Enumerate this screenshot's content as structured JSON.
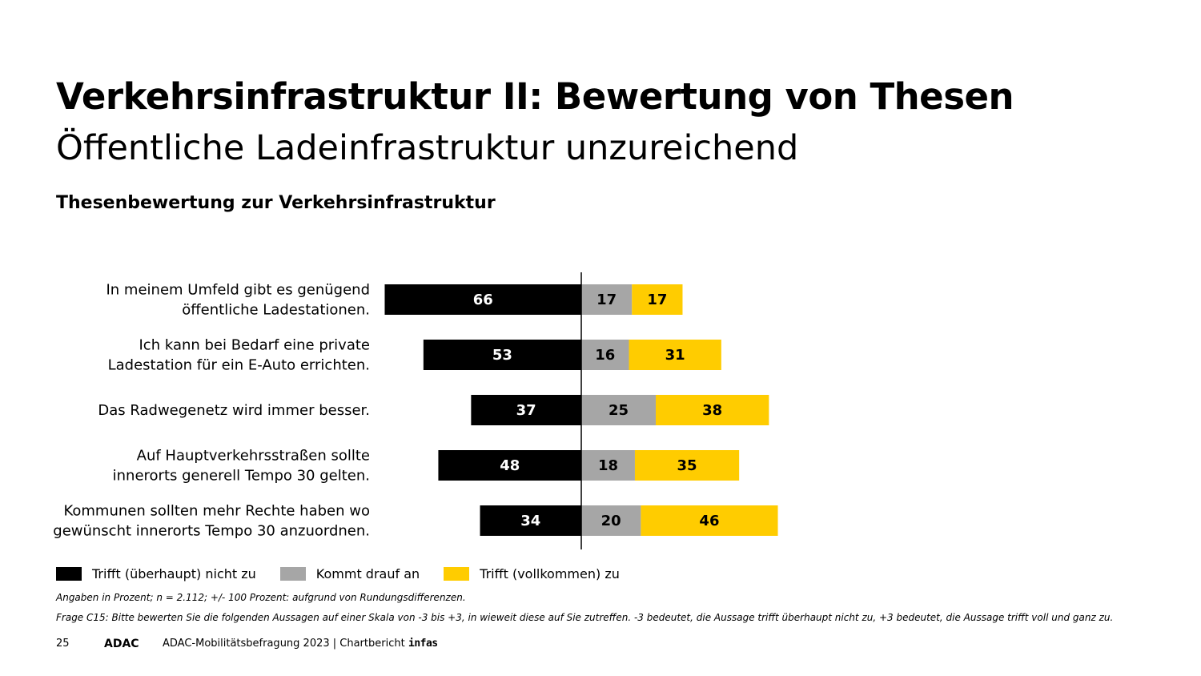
{
  "header": {
    "title": "Verkehrsinfrastruktur II: Bewertung von Thesen",
    "subtitle": "Öffentliche Ladeinfrastruktur unzureichend"
  },
  "chart_data": {
    "type": "bar",
    "orientation": "horizontal-diverging",
    "title": "Thesenbewertung zur Verkehrsinfrastruktur",
    "categories": [
      [
        "In meinem Umfeld gibt es genügend",
        "öffentliche Ladestationen."
      ],
      [
        "Ich kann bei Bedarf eine private",
        "Ladestation für ein E-Auto errichten."
      ],
      [
        "Das Radwegenetz wird immer besser."
      ],
      [
        "Auf Hauptverkehrsstraßen sollte",
        "innerorts generell Tempo 30 gelten."
      ],
      [
        "Kommunen sollten mehr Rechte haben wo",
        "gewünscht innerorts Tempo 30 anzuordnen."
      ]
    ],
    "series": [
      {
        "name": "Trifft (überhaupt) nicht zu",
        "color": "#000000",
        "label_color": "#ffffff",
        "values": [
          66,
          53,
          37,
          48,
          34
        ]
      },
      {
        "name": "Kommt drauf an",
        "color": "#a6a6a6",
        "label_color": "#000000",
        "values": [
          17,
          16,
          25,
          18,
          20
        ]
      },
      {
        "name": "Trifft (vollkommen) zu",
        "color": "#ffcc00",
        "label_color": "#000000",
        "values": [
          17,
          31,
          38,
          35,
          46
        ]
      }
    ],
    "unit": "%",
    "xlim": [
      -100,
      100
    ],
    "legend_position": "bottom-left"
  },
  "notes": {
    "basis": "Angaben in Prozent;  n = 2.112; +/- 100 Prozent: aufgrund von Rundungsdifferenzen.",
    "question": "Frage C15: Bitte bewerten  Sie die folgenden Aussagen auf einer Skala von -3 bis +3,  in wieweit  diese auf Sie zutreffen.  -3 bedeutet,  die Aussage trifft überhaupt nicht zu, +3 bedeutet,  die Aussage trifft  voll und ganz zu."
  },
  "footer": {
    "page_number": "25",
    "logo_left": "ADAC",
    "report": "ADAC-Mobilitätsbefragung 2023 | Chartbericht",
    "logo_right": "infas"
  }
}
